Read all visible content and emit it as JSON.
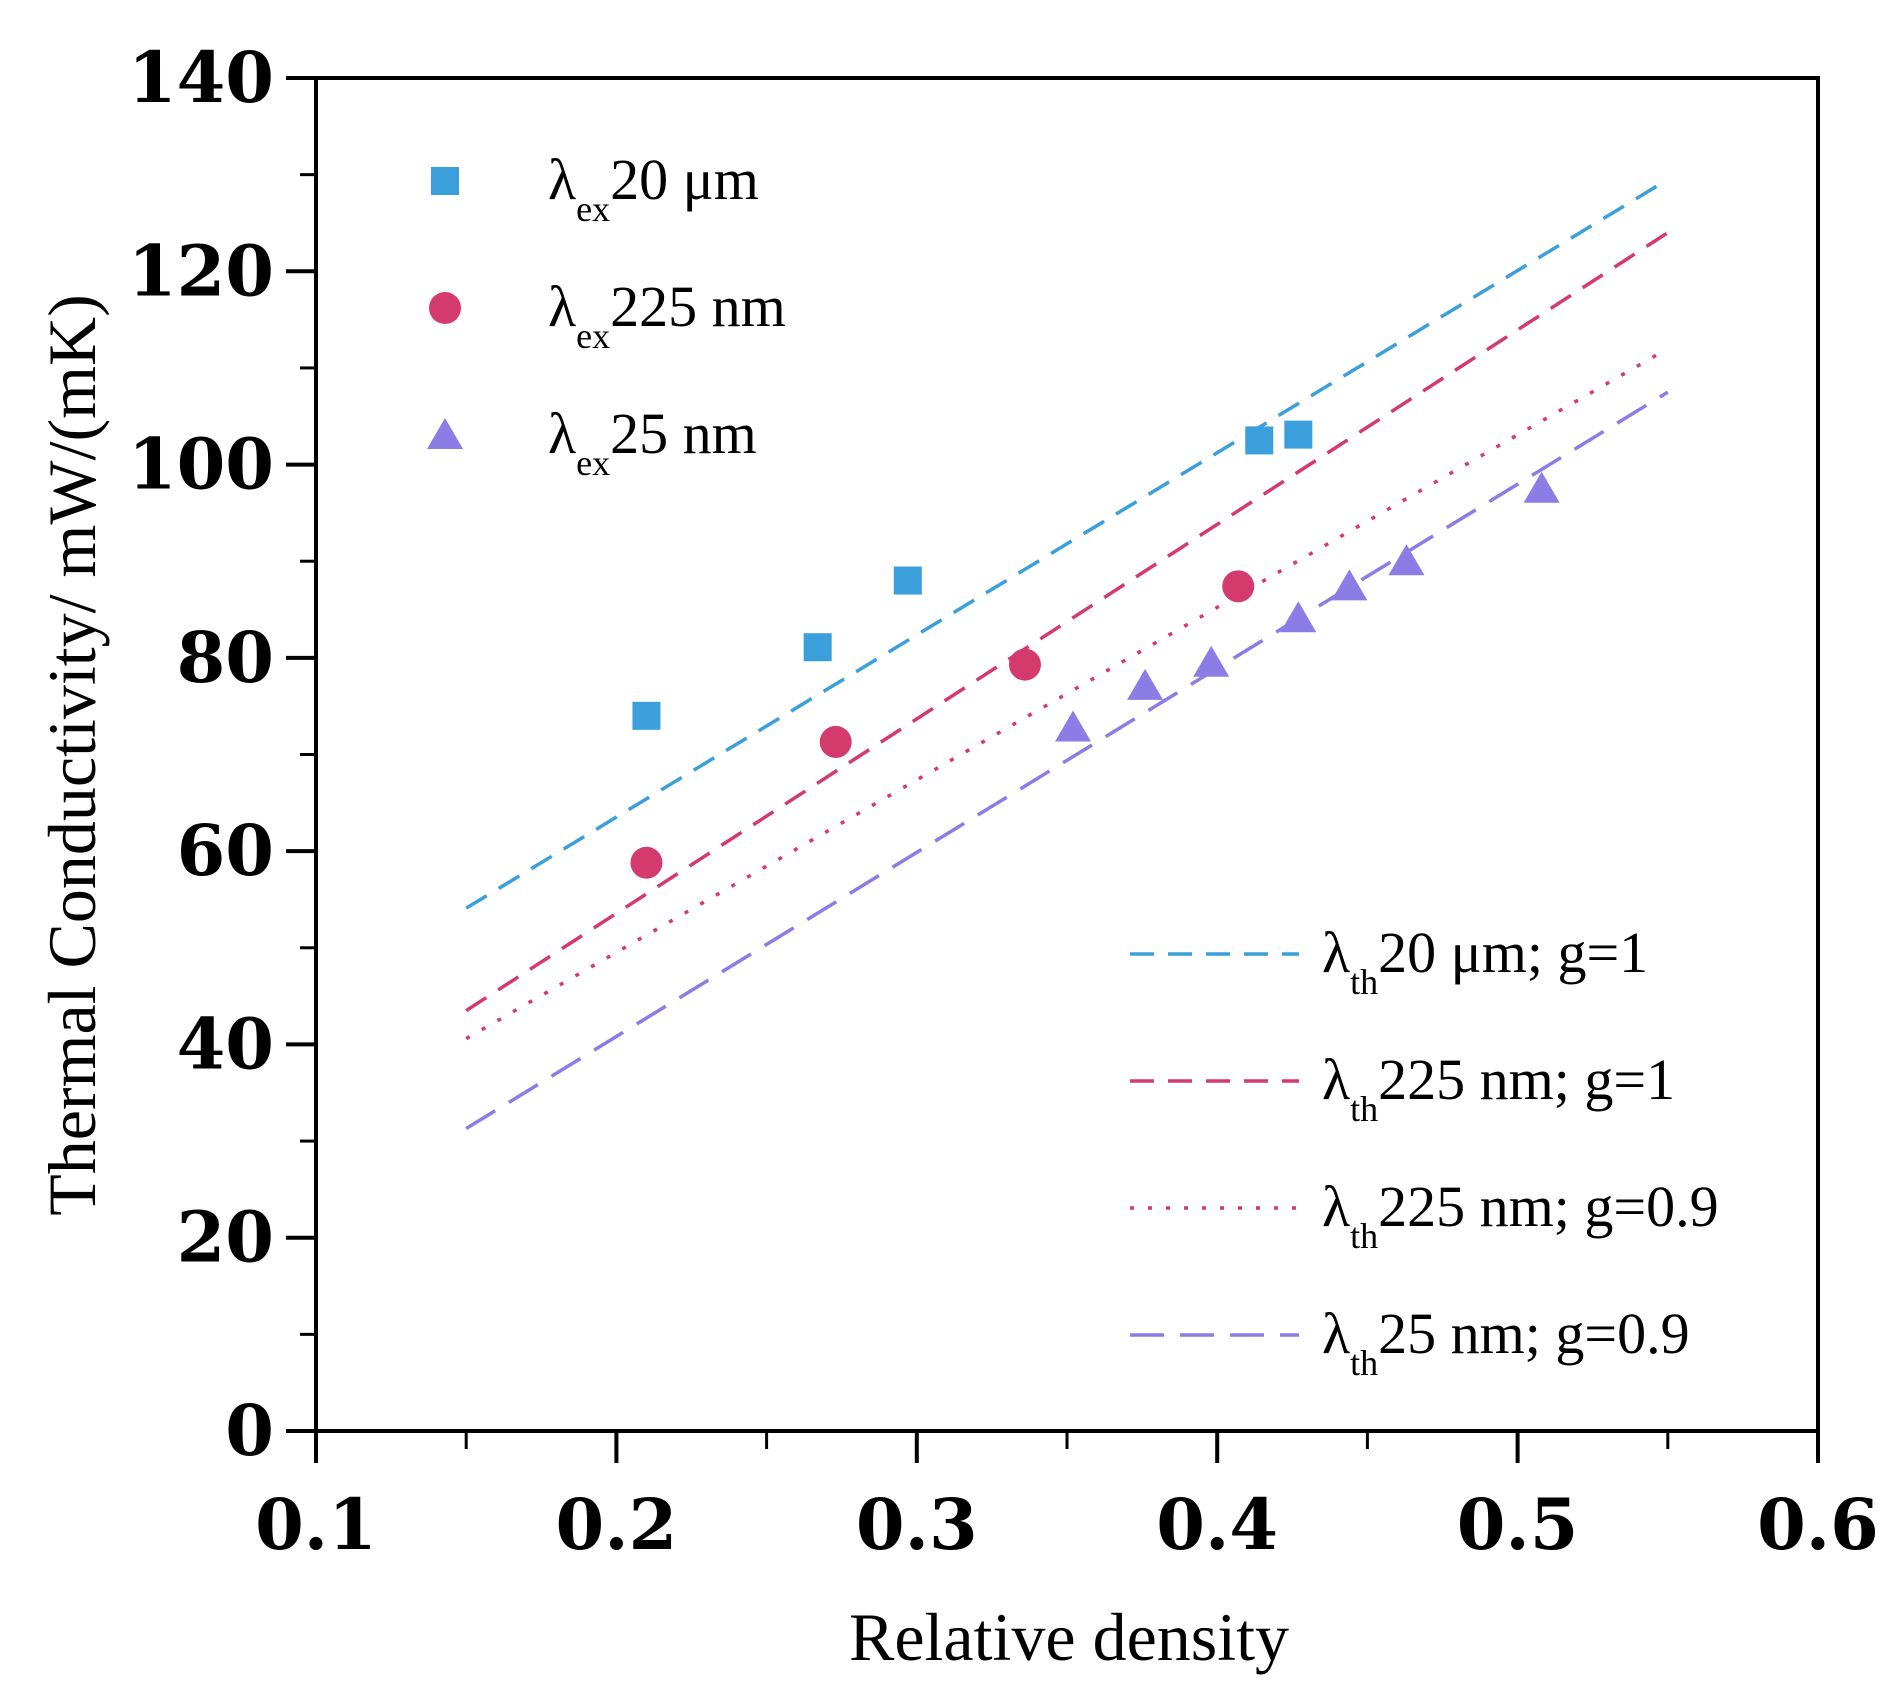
{
  "chart_data": {
    "type": "scatter",
    "title": "",
    "xlabel": "Relative density",
    "ylabel": "Thermal Conductivity/ mW/(mK)",
    "xlim": [
      0.1,
      0.6
    ],
    "ylim": [
      0,
      140
    ],
    "xticks": [
      "0.1",
      "0.2",
      "0.3",
      "0.4",
      "0.5",
      "0.6"
    ],
    "yticks": [
      "0",
      "20",
      "40",
      "60",
      "80",
      "100",
      "120",
      "140"
    ],
    "grid": false,
    "legend_placement": [
      "top-left",
      "bottom-right"
    ],
    "series": [
      {
        "name": "λex 20 μm",
        "sym": "λ",
        "sub": "ex",
        "label": "20 μm",
        "kind": "square",
        "color": "#3a9fdb",
        "x": [
          0.21,
          0.267,
          0.297,
          0.414,
          0.427
        ],
        "y": [
          74.0,
          81.1,
          88.0,
          102.5,
          103.1
        ]
      },
      {
        "name": "λex 225 nm",
        "sym": "λ",
        "sub": "ex",
        "label": "225 nm",
        "kind": "circle",
        "color": "#d43a6b",
        "x": [
          0.21,
          0.273,
          0.336,
          0.407
        ],
        "y": [
          58.8,
          71.3,
          79.3,
          87.4
        ]
      },
      {
        "name": "λex 25 nm",
        "sym": "λ",
        "sub": "ex",
        "label": "25 nm",
        "kind": "triangle",
        "color": "#8c7ce6",
        "x": [
          0.352,
          0.376,
          0.398,
          0.427,
          0.444,
          0.463,
          0.508
        ],
        "y": [
          72.8,
          77.1,
          79.5,
          84.1,
          87.4,
          90.0,
          97.5
        ]
      }
    ],
    "lines": [
      {
        "name": "λth 20 μm; g=1",
        "sym": "λ",
        "sub": "th",
        "label": "20 μm; g=1",
        "style": "dashed",
        "color": "#3a9fdb",
        "x": [
          0.15,
          0.55
        ],
        "y": [
          54.1,
          129.5
        ]
      },
      {
        "name": "λth 225 nm; g=1",
        "sym": "λ",
        "sub": "th",
        "label": "225 nm; g=1",
        "style": "dashed",
        "color": "#d43a6b",
        "x": [
          0.15,
          0.55
        ],
        "y": [
          43.5,
          124.0
        ]
      },
      {
        "name": "λth 225 nm; g=0.9",
        "sym": "λ",
        "sub": "th",
        "label": "225 nm; g=0.9",
        "style": "dotted",
        "color": "#d43a6b",
        "x": [
          0.15,
          0.55
        ],
        "y": [
          40.6,
          112.0
        ]
      },
      {
        "name": "λth 25 nm; g=0.9",
        "sym": "λ",
        "sub": "th",
        "label": "25 nm; g=0.9",
        "style": "longdash",
        "color": "#8c7ce6",
        "x": [
          0.15,
          0.55
        ],
        "y": [
          31.3,
          107.5
        ]
      }
    ]
  }
}
